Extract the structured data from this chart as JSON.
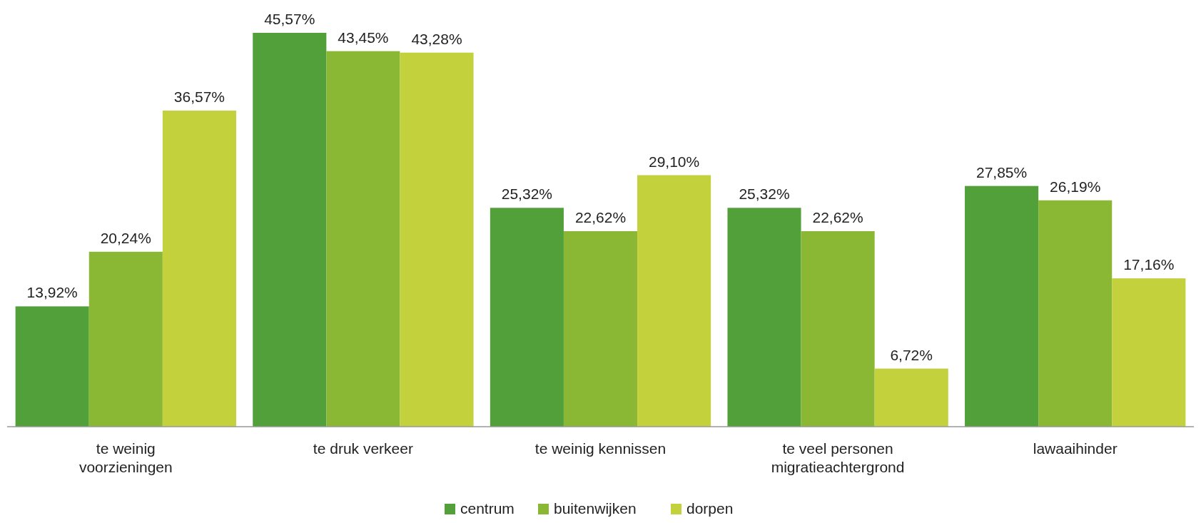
{
  "chart_data": {
    "type": "bar",
    "categories": [
      "te weinig voorzieningen",
      "te druk verkeer",
      "te weinig kennissen",
      "te veel personen migratieachtergrond",
      "lawaaihinder"
    ],
    "series": [
      {
        "name": "centrum",
        "color": "#52a03a",
        "values": [
          13.92,
          45.57,
          25.32,
          25.32,
          27.85
        ],
        "value_labels": [
          "13,92%",
          "45,57%",
          "25,32%",
          "25,32%",
          "27,85%"
        ]
      },
      {
        "name": "buitenwijken",
        "color": "#8ab834",
        "values": [
          20.24,
          43.45,
          22.62,
          22.62,
          26.19
        ],
        "value_labels": [
          "20,24%",
          "43,45%",
          "22,62%",
          "22,62%",
          "26,19%"
        ]
      },
      {
        "name": "dorpen",
        "color": "#c2d13c",
        "values": [
          36.57,
          43.28,
          29.1,
          6.72,
          17.16
        ],
        "value_labels": [
          "36,57%",
          "43,28%",
          "29,10%",
          "6,72%",
          "17,16%"
        ]
      }
    ],
    "legend": "bottom"
  }
}
